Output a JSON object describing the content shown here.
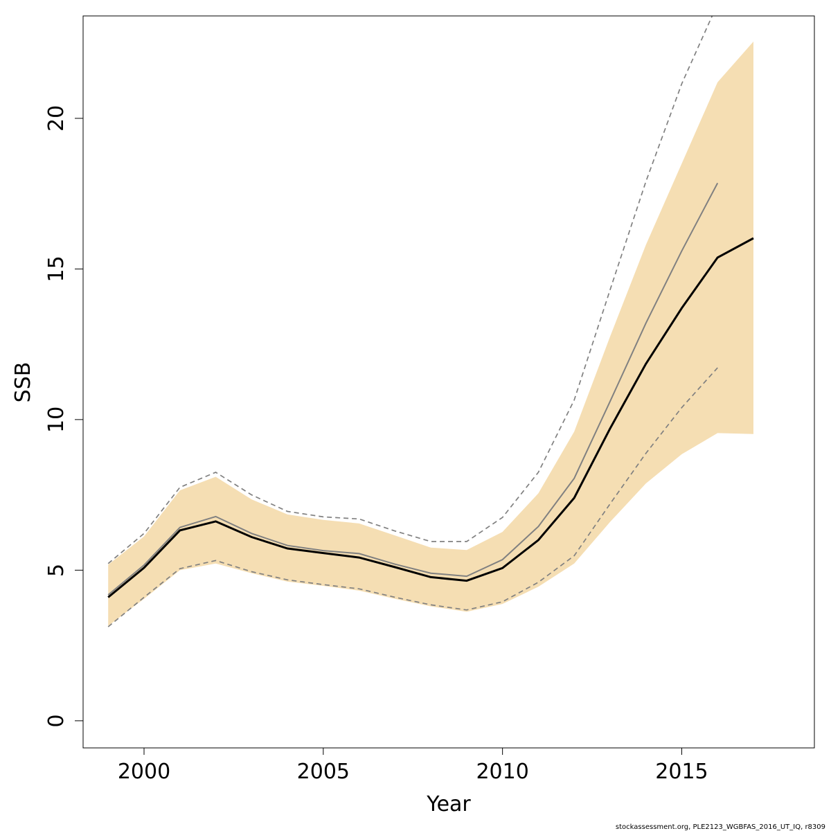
{
  "chart_data": {
    "type": "line",
    "title": "",
    "xlabel": "Year",
    "ylabel": "SSB",
    "xlim": [
      1998.3,
      2018.7
    ],
    "ylim": [
      -0.9,
      23.4
    ],
    "x_ticks": [
      2000,
      2005,
      2010,
      2015
    ],
    "y_ticks": [
      0,
      5,
      10,
      15,
      20
    ],
    "grid": false,
    "legend": "none",
    "colors": {
      "band": "#F5DEB3",
      "current": "#000000",
      "previous": "#808080",
      "previous_ci": "#808080"
    },
    "series": [
      {
        "x": [
          1999,
          2000,
          2001,
          2002,
          2003,
          2004,
          2005,
          2006,
          2007,
          2008,
          2009,
          2010,
          2011,
          2012,
          2013,
          2014,
          2015,
          2016,
          2017
        ],
        "lower": [
          3.15,
          4.05,
          5.0,
          5.22,
          4.9,
          4.62,
          4.48,
          4.32,
          4.05,
          3.8,
          3.62,
          3.88,
          4.45,
          5.22,
          6.6,
          7.88,
          8.85,
          9.55,
          9.52
        ],
        "upper": [
          5.18,
          6.12,
          7.65,
          8.1,
          7.35,
          6.85,
          6.67,
          6.55,
          6.15,
          5.75,
          5.67,
          6.27,
          7.55,
          9.6,
          12.75,
          15.8,
          18.5,
          21.2,
          22.55
        ]
      },
      {
        "x": [
          1999,
          2000,
          2001,
          2002,
          2003,
          2004,
          2005,
          2006,
          2007,
          2008,
          2009,
          2010,
          2011,
          2012,
          2013,
          2014,
          2015,
          2016,
          2017
        ],
        "values": [
          4.1,
          5.08,
          6.32,
          6.62,
          6.1,
          5.72,
          5.57,
          5.42,
          5.1,
          4.77,
          4.65,
          5.07,
          6.0,
          7.4,
          9.7,
          11.85,
          13.7,
          15.38,
          16.02
        ]
      },
      {
        "x": [
          1999,
          2000,
          2001,
          2002,
          2003,
          2004,
          2005,
          2006,
          2007,
          2008,
          2009,
          2010,
          2011,
          2012,
          2013,
          2014,
          2015,
          2016
        ],
        "values": [
          4.18,
          5.17,
          6.42,
          6.78,
          6.22,
          5.82,
          5.65,
          5.55,
          5.2,
          4.9,
          4.8,
          5.35,
          6.45,
          8.05,
          10.6,
          13.2,
          15.6,
          17.85
        ]
      },
      {
        "x": [
          1999,
          2000,
          2001,
          2002,
          2003,
          2004,
          2005,
          2006,
          2007,
          2008,
          2009,
          2010,
          2011,
          2012,
          2013,
          2014,
          2015,
          2016
        ],
        "upper": [
          5.22,
          6.22,
          7.75,
          8.25,
          7.5,
          6.95,
          6.77,
          6.7,
          6.3,
          5.95,
          5.95,
          6.75,
          8.25,
          10.65,
          14.3,
          17.9,
          21.15,
          23.8
        ],
        "lower": [
          3.12,
          4.1,
          5.05,
          5.32,
          4.95,
          4.68,
          4.52,
          4.38,
          4.1,
          3.85,
          3.68,
          3.95,
          4.6,
          5.48,
          7.2,
          8.88,
          10.4,
          11.72
        ]
      }
    ]
  },
  "footer": {
    "note": "stockassessment.org, PLE2123_WGBFAS_2016_UT_IQ, r8309"
  }
}
